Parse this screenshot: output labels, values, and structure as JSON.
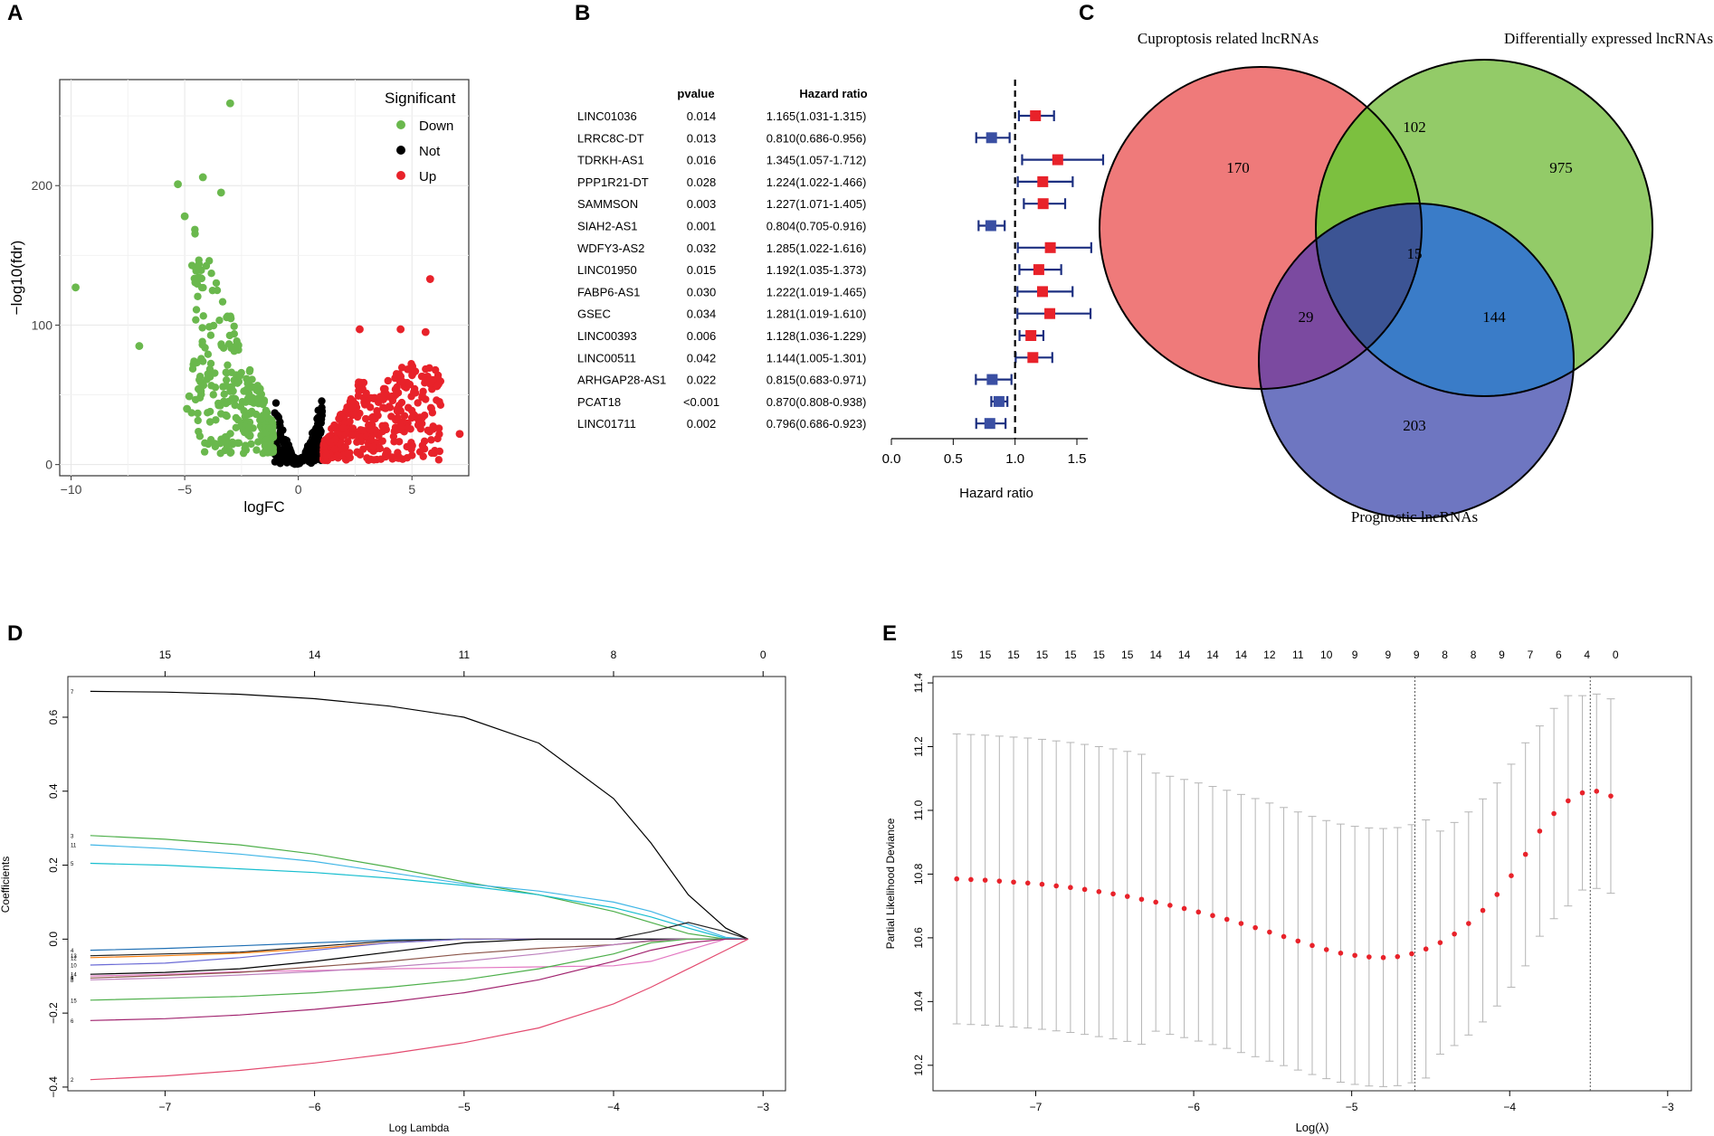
{
  "panels": {
    "A": "A",
    "B": "B",
    "C": "C",
    "D": "D",
    "E": "E"
  },
  "colors": {
    "down": "#6ab84d",
    "not": "#000000",
    "up": "#e8222a",
    "hr_risk": "#e8222a",
    "hr_protect": "#3a4fa3"
  },
  "chart_data": [
    {
      "type": "scatter",
      "title": "",
      "xlabel": "logFC",
      "ylabel": "−log10(fdr)",
      "xlim": [
        -10.5,
        7.5
      ],
      "ylim": [
        -8,
        276
      ],
      "xticks": [
        {
          "v": -10,
          "label": "−10"
        },
        {
          "v": -5,
          "label": "−5"
        },
        {
          "v": 0,
          "label": "0"
        },
        {
          "v": 5,
          "label": "5"
        }
      ],
      "yticks": [
        {
          "v": 0,
          "label": "0"
        },
        {
          "v": 100,
          "label": "100"
        },
        {
          "v": 200,
          "label": "200"
        }
      ],
      "legend": {
        "title": "Significant",
        "entries": [
          {
            "label": "Down",
            "color": "#6ab84d"
          },
          {
            "label": "Not",
            "color": "#000000"
          },
          {
            "label": "Up",
            "color": "#e8222a"
          }
        ]
      },
      "highlight_points": [
        {
          "x": -9.8,
          "y": 127,
          "group": "Down"
        },
        {
          "x": -7.0,
          "y": 85,
          "group": "Down"
        },
        {
          "x": -3.0,
          "y": 259,
          "group": "Down"
        },
        {
          "x": -5.3,
          "y": 201,
          "group": "Down"
        },
        {
          "x": -4.2,
          "y": 206,
          "group": "Down"
        },
        {
          "x": -3.4,
          "y": 195,
          "group": "Down"
        },
        {
          "x": -5.0,
          "y": 178,
          "group": "Down"
        },
        {
          "x": -4.8,
          "y": 49,
          "group": "Down"
        },
        {
          "x": -4.9,
          "y": 40,
          "group": "Down"
        },
        {
          "x": 5.8,
          "y": 133,
          "group": "Up"
        },
        {
          "x": 5.6,
          "y": 95,
          "group": "Up"
        },
        {
          "x": 2.7,
          "y": 97,
          "group": "Up"
        },
        {
          "x": 4.5,
          "y": 97,
          "group": "Up"
        },
        {
          "x": 7.1,
          "y": 22,
          "group": "Up"
        },
        {
          "x": 6.2,
          "y": 45,
          "group": "Up"
        }
      ]
    },
    {
      "type": "table",
      "subtype": "forest",
      "headers": {
        "pvalue": "pvalue",
        "hr": "Hazard ratio"
      },
      "xlabel": "Hazard ratio",
      "xlim": [
        0.0,
        1.6
      ],
      "xticks": [
        {
          "v": 0.0,
          "label": "0.0"
        },
        {
          "v": 0.5,
          "label": "0.5"
        },
        {
          "v": 1.0,
          "label": "1.0"
        },
        {
          "v": 1.5,
          "label": "1.5"
        }
      ],
      "reference": 1.0,
      "rows": [
        {
          "gene": "LINC01036",
          "p": "0.014",
          "hr_text": "1.165(1.031-1.315)",
          "hr": 1.165,
          "lo": 1.031,
          "hi": 1.315
        },
        {
          "gene": "LRRC8C-DT",
          "p": "0.013",
          "hr_text": "0.810(0.686-0.956)",
          "hr": 0.81,
          "lo": 0.686,
          "hi": 0.956
        },
        {
          "gene": "TDRKH-AS1",
          "p": "0.016",
          "hr_text": "1.345(1.057-1.712)",
          "hr": 1.345,
          "lo": 1.057,
          "hi": 1.712
        },
        {
          "gene": "PPP1R21-DT",
          "p": "0.028",
          "hr_text": "1.224(1.022-1.466)",
          "hr": 1.224,
          "lo": 1.022,
          "hi": 1.466
        },
        {
          "gene": "SAMMSON",
          "p": "0.003",
          "hr_text": "1.227(1.071-1.405)",
          "hr": 1.227,
          "lo": 1.071,
          "hi": 1.405
        },
        {
          "gene": "SIAH2-AS1",
          "p": "0.001",
          "hr_text": "0.804(0.705-0.916)",
          "hr": 0.804,
          "lo": 0.705,
          "hi": 0.916
        },
        {
          "gene": "WDFY3-AS2",
          "p": "0.032",
          "hr_text": "1.285(1.022-1.616)",
          "hr": 1.285,
          "lo": 1.022,
          "hi": 1.616
        },
        {
          "gene": "LINC01950",
          "p": "0.015",
          "hr_text": "1.192(1.035-1.373)",
          "hr": 1.192,
          "lo": 1.035,
          "hi": 1.373
        },
        {
          "gene": "FABP6-AS1",
          "p": "0.030",
          "hr_text": "1.222(1.019-1.465)",
          "hr": 1.222,
          "lo": 1.019,
          "hi": 1.465
        },
        {
          "gene": "GSEC",
          "p": "0.034",
          "hr_text": "1.281(1.019-1.610)",
          "hr": 1.281,
          "lo": 1.019,
          "hi": 1.61
        },
        {
          "gene": "LINC00393",
          "p": "0.006",
          "hr_text": "1.128(1.036-1.229)",
          "hr": 1.128,
          "lo": 1.036,
          "hi": 1.229
        },
        {
          "gene": "LINC00511",
          "p": "0.042",
          "hr_text": "1.144(1.005-1.301)",
          "hr": 1.144,
          "lo": 1.005,
          "hi": 1.301
        },
        {
          "gene": "ARHGAP28-AS1",
          "p": "0.022",
          "hr_text": "0.815(0.683-0.971)",
          "hr": 0.815,
          "lo": 0.683,
          "hi": 0.971
        },
        {
          "gene": "PCAT18",
          "p": "<0.001",
          "hr_text": "0.870(0.808-0.938)",
          "hr": 0.87,
          "lo": 0.808,
          "hi": 0.938
        },
        {
          "gene": "LINC01711",
          "p": "0.002",
          "hr_text": "0.796(0.686-0.923)",
          "hr": 0.796,
          "lo": 0.686,
          "hi": 0.923
        }
      ]
    },
    {
      "type": "venn",
      "sets": [
        {
          "label": "Cuproptosis related lncRNAs",
          "color": "#ef6f6f"
        },
        {
          "label": "Differentially expressed lncRNAs",
          "color": "#8ec65a"
        },
        {
          "label": "Prognostic lncRNAs",
          "color": "#6a72bf"
        }
      ],
      "regions": {
        "cupro_only": "170",
        "diff_only": "975",
        "prog_only": "203",
        "cupro_diff": "102",
        "cupro_prog": "29",
        "diff_prog": "144",
        "all": "15"
      }
    },
    {
      "type": "line",
      "title": "",
      "xlabel": "Log Lambda",
      "ylabel": "Coefficients",
      "xlim": [
        -7.65,
        -2.85
      ],
      "ylim": [
        -0.41,
        0.71
      ],
      "xticks": [
        {
          "v": -7,
          "label": "−7"
        },
        {
          "v": -6,
          "label": "−6"
        },
        {
          "v": -5,
          "label": "−5"
        },
        {
          "v": -4,
          "label": "−4"
        },
        {
          "v": -3,
          "label": "−3"
        }
      ],
      "yticks": [
        {
          "v": -0.4,
          "label": "−0.4"
        },
        {
          "v": -0.2,
          "label": "−0.2"
        },
        {
          "v": 0.0,
          "label": "0.0"
        },
        {
          "v": 0.2,
          "label": "0.2"
        },
        {
          "v": 0.4,
          "label": "0.4"
        },
        {
          "v": 0.6,
          "label": "0.6"
        }
      ],
      "top_axis": [
        {
          "v": -7,
          "label": "15"
        },
        {
          "v": -6,
          "label": "14"
        },
        {
          "v": -5,
          "label": "11"
        },
        {
          "v": -4,
          "label": "8"
        },
        {
          "v": -3,
          "label": "0"
        }
      ],
      "x": [
        -7.5,
        -7.0,
        -6.5,
        -6.0,
        -5.5,
        -5.0,
        -4.5,
        -4.0,
        -3.75,
        -3.5,
        -3.25,
        -3.1
      ],
      "series": [
        {
          "name": "7",
          "label": "7",
          "color": "#000000",
          "values": [
            0.67,
            0.668,
            0.662,
            0.65,
            0.63,
            0.6,
            0.53,
            0.38,
            0.26,
            0.12,
            0.03,
            0.0
          ]
        },
        {
          "name": "3",
          "label": "3",
          "color": "#4daf4a",
          "values": [
            0.28,
            0.27,
            0.255,
            0.23,
            0.195,
            0.155,
            0.12,
            0.075,
            0.045,
            0.015,
            0.0,
            0.0
          ]
        },
        {
          "name": "11",
          "label": "11",
          "color": "#41b6e6",
          "values": [
            0.255,
            0.245,
            0.23,
            0.21,
            0.18,
            0.15,
            0.13,
            0.1,
            0.075,
            0.04,
            0.005,
            0.0
          ]
        },
        {
          "name": "5",
          "label": "5",
          "color": "#17becf",
          "values": [
            0.205,
            0.2,
            0.19,
            0.18,
            0.165,
            0.145,
            0.12,
            0.085,
            0.06,
            0.03,
            0.002,
            0.0
          ]
        },
        {
          "name": "4",
          "label": "4",
          "color": "#1f6fb4",
          "values": [
            -0.03,
            -0.025,
            -0.018,
            -0.01,
            -0.002,
            0.0,
            0.0,
            0.0,
            0.0,
            0.0,
            0.0,
            0.0
          ]
        },
        {
          "name": "13",
          "label": "13",
          "color": "#222222",
          "values": [
            -0.045,
            -0.04,
            -0.035,
            -0.02,
            -0.005,
            0.0,
            0.0,
            0.0,
            0.02,
            0.045,
            0.02,
            0.0
          ]
        },
        {
          "name": "12",
          "label": "12",
          "color": "#ff7f0e",
          "values": [
            -0.05,
            -0.045,
            -0.038,
            -0.025,
            -0.01,
            0.0,
            0.0,
            0.0,
            0.0,
            0.0,
            0.0,
            0.0
          ]
        },
        {
          "name": "10",
          "label": "10",
          "color": "#6b6bd6",
          "values": [
            -0.07,
            -0.065,
            -0.05,
            -0.03,
            -0.01,
            0.0,
            0.0,
            0.0,
            0.0,
            0.0,
            0.0,
            0.0
          ]
        },
        {
          "name": "14",
          "label": "14",
          "color": "#000000",
          "values": [
            -0.095,
            -0.09,
            -0.08,
            -0.06,
            -0.035,
            -0.01,
            0.0,
            0.0,
            0.0,
            0.0,
            0.0,
            0.0
          ]
        },
        {
          "name": "1",
          "label": "1",
          "color": "#e377c2",
          "values": [
            -0.1,
            -0.095,
            -0.088,
            -0.085,
            -0.08,
            -0.078,
            -0.075,
            -0.072,
            -0.06,
            -0.03,
            0.0,
            0.0
          ]
        },
        {
          "name": "9",
          "label": "9",
          "color": "#8c564b",
          "values": [
            -0.105,
            -0.098,
            -0.09,
            -0.075,
            -0.06,
            -0.04,
            -0.025,
            -0.015,
            -0.005,
            0.0,
            0.0,
            0.0
          ]
        },
        {
          "name": "8",
          "label": "8",
          "color": "#bc80bd",
          "values": [
            -0.11,
            -0.105,
            -0.097,
            -0.088,
            -0.075,
            -0.06,
            -0.04,
            -0.015,
            -0.003,
            0.0,
            0.0,
            0.0
          ]
        },
        {
          "name": "15",
          "label": "15",
          "color": "#4daf4a",
          "values": [
            -0.165,
            -0.16,
            -0.155,
            -0.145,
            -0.13,
            -0.11,
            -0.08,
            -0.04,
            -0.01,
            0.0,
            0.0,
            0.0
          ]
        },
        {
          "name": "6",
          "label": "6",
          "color": "#a1246f",
          "values": [
            -0.22,
            -0.215,
            -0.205,
            -0.19,
            -0.17,
            -0.145,
            -0.11,
            -0.06,
            -0.03,
            -0.01,
            0.0,
            0.0
          ]
        },
        {
          "name": "2",
          "label": "2",
          "color": "#e34a6f",
          "values": [
            -0.38,
            -0.37,
            -0.355,
            -0.335,
            -0.31,
            -0.28,
            -0.24,
            -0.175,
            -0.13,
            -0.08,
            -0.03,
            0.0
          ]
        }
      ]
    },
    {
      "type": "scatter",
      "subtype": "cv-errorbar",
      "title": "",
      "xlabel": "Log(λ)",
      "ylabel": "Partial Likelihood Deviance",
      "xlim": [
        -7.65,
        -2.85
      ],
      "ylim": [
        10.12,
        11.42
      ],
      "xticks": [
        {
          "v": -7,
          "label": "−7"
        },
        {
          "v": -6,
          "label": "−6"
        },
        {
          "v": -5,
          "label": "−5"
        },
        {
          "v": -4,
          "label": "−4"
        },
        {
          "v": -3,
          "label": "−3"
        }
      ],
      "yticks": [
        {
          "v": 10.2,
          "label": "10.2"
        },
        {
          "v": 10.4,
          "label": "10.4"
        },
        {
          "v": 10.6,
          "label": "10.6"
        },
        {
          "v": 10.8,
          "label": "10.8"
        },
        {
          "v": 11.0,
          "label": "11.0"
        },
        {
          "v": 11.2,
          "label": "11.2"
        },
        {
          "v": 11.4,
          "label": "11.4"
        }
      ],
      "top_axis": [
        {
          "v": -7.5,
          "label": "15"
        },
        {
          "v": -7.32,
          "label": "15"
        },
        {
          "v": -7.14,
          "label": "15"
        },
        {
          "v": -6.96,
          "label": "15"
        },
        {
          "v": -6.78,
          "label": "15"
        },
        {
          "v": -6.6,
          "label": "15"
        },
        {
          "v": -6.42,
          "label": "15"
        },
        {
          "v": -6.24,
          "label": "14"
        },
        {
          "v": -6.06,
          "label": "14"
        },
        {
          "v": -5.88,
          "label": "14"
        },
        {
          "v": -5.7,
          "label": "14"
        },
        {
          "v": -5.52,
          "label": "12"
        },
        {
          "v": -5.34,
          "label": "11"
        },
        {
          "v": -5.16,
          "label": "10"
        },
        {
          "v": -4.98,
          "label": "9"
        },
        {
          "v": -4.77,
          "label": "9"
        },
        {
          "v": -4.59,
          "label": "9"
        },
        {
          "v": -4.41,
          "label": "8"
        },
        {
          "v": -4.23,
          "label": "8"
        },
        {
          "v": -4.05,
          "label": "9"
        },
        {
          "v": -3.87,
          "label": "7"
        },
        {
          "v": -3.69,
          "label": "6"
        },
        {
          "v": -3.51,
          "label": "4"
        },
        {
          "v": -3.33,
          "label": "0"
        }
      ],
      "x_start": -7.5,
      "x_step": 0.09,
      "means": [
        10.785,
        10.783,
        10.781,
        10.778,
        10.775,
        10.772,
        10.768,
        10.763,
        10.758,
        10.752,
        10.745,
        10.738,
        10.73,
        10.721,
        10.712,
        10.702,
        10.692,
        10.681,
        10.67,
        10.658,
        10.645,
        10.632,
        10.618,
        10.604,
        10.59,
        10.576,
        10.563,
        10.552,
        10.545,
        10.54,
        10.538,
        10.541,
        10.55,
        10.565,
        10.585,
        10.612,
        10.645,
        10.686,
        10.736,
        10.795,
        10.862,
        10.935,
        10.99,
        11.03,
        11.055,
        11.06,
        11.045
      ],
      "se": [
        0.455,
        0.455,
        0.455,
        0.455,
        0.455,
        0.455,
        0.455,
        0.455,
        0.455,
        0.455,
        0.455,
        0.455,
        0.455,
        0.455,
        0.405,
        0.405,
        0.405,
        0.405,
        0.405,
        0.405,
        0.405,
        0.405,
        0.405,
        0.405,
        0.405,
        0.405,
        0.405,
        0.405,
        0.405,
        0.405,
        0.405,
        0.405,
        0.405,
        0.405,
        0.35,
        0.35,
        0.35,
        0.35,
        0.35,
        0.35,
        0.35,
        0.33,
        0.33,
        0.33,
        0.305,
        0.305,
        0.305
      ],
      "vlines": [
        -4.6,
        -3.49
      ]
    }
  ]
}
